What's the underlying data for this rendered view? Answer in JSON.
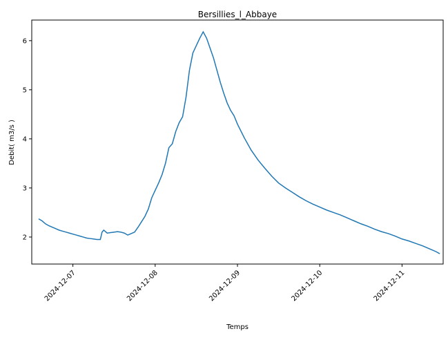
{
  "chart_data": {
    "type": "line",
    "title": "Bersillies_l_Abbaye",
    "xlabel": "Temps",
    "ylabel": "Debit( m3/s )",
    "x_type": "datetime",
    "xlim": [
      "2024-12-06 12:00",
      "2024-12-11 12:00"
    ],
    "ylim": [
      1.45,
      6.42
    ],
    "grid": false,
    "x_ticks": [
      "2024-12-07",
      "2024-12-08",
      "2024-12-09",
      "2024-12-10",
      "2024-12-11"
    ],
    "y_ticks": [
      2,
      3,
      4,
      5,
      6
    ],
    "series": [
      {
        "color": "#1f77b4",
        "points": [
          [
            "2024-12-06 14:00",
            2.37
          ],
          [
            "2024-12-06 15:00",
            2.33
          ],
          [
            "2024-12-06 16:00",
            2.27
          ],
          [
            "2024-12-06 17:00",
            2.23
          ],
          [
            "2024-12-06 18:00",
            2.2
          ],
          [
            "2024-12-06 19:00",
            2.17
          ],
          [
            "2024-12-06 20:00",
            2.14
          ],
          [
            "2024-12-06 21:00",
            2.12
          ],
          [
            "2024-12-06 22:00",
            2.1
          ],
          [
            "2024-12-06 23:00",
            2.08
          ],
          [
            "2024-12-07 00:00",
            2.06
          ],
          [
            "2024-12-07 01:00",
            2.04
          ],
          [
            "2024-12-07 02:00",
            2.02
          ],
          [
            "2024-12-07 03:00",
            2.0
          ],
          [
            "2024-12-07 04:00",
            1.98
          ],
          [
            "2024-12-07 05:00",
            1.97
          ],
          [
            "2024-12-07 06:00",
            1.96
          ],
          [
            "2024-12-07 07:00",
            1.95
          ],
          [
            "2024-12-07 08:00",
            1.95
          ],
          [
            "2024-12-07 08:30",
            2.1
          ],
          [
            "2024-12-07 09:00",
            2.14
          ],
          [
            "2024-12-07 10:00",
            2.08
          ],
          [
            "2024-12-07 11:00",
            2.09
          ],
          [
            "2024-12-07 12:00",
            2.1
          ],
          [
            "2024-12-07 13:00",
            2.11
          ],
          [
            "2024-12-07 14:00",
            2.1
          ],
          [
            "2024-12-07 15:00",
            2.08
          ],
          [
            "2024-12-07 16:00",
            2.04
          ],
          [
            "2024-12-07 17:00",
            2.07
          ],
          [
            "2024-12-07 18:00",
            2.1
          ],
          [
            "2024-12-07 19:00",
            2.2
          ],
          [
            "2024-12-07 20:00",
            2.31
          ],
          [
            "2024-12-07 21:00",
            2.42
          ],
          [
            "2024-12-07 22:00",
            2.57
          ],
          [
            "2024-12-07 23:00",
            2.8
          ],
          [
            "2024-12-08 00:00",
            2.95
          ],
          [
            "2024-12-08 01:00",
            3.1
          ],
          [
            "2024-12-08 02:00",
            3.27
          ],
          [
            "2024-12-08 03:00",
            3.5
          ],
          [
            "2024-12-08 04:00",
            3.82
          ],
          [
            "2024-12-08 05:00",
            3.9
          ],
          [
            "2024-12-08 06:00",
            4.15
          ],
          [
            "2024-12-08 07:00",
            4.33
          ],
          [
            "2024-12-08 08:00",
            4.45
          ],
          [
            "2024-12-08 09:00",
            4.85
          ],
          [
            "2024-12-08 10:00",
            5.4
          ],
          [
            "2024-12-08 11:00",
            5.75
          ],
          [
            "2024-12-08 12:00",
            5.9
          ],
          [
            "2024-12-08 13:00",
            6.05
          ],
          [
            "2024-12-08 14:00",
            6.18
          ],
          [
            "2024-12-08 15:00",
            6.05
          ],
          [
            "2024-12-08 16:00",
            5.85
          ],
          [
            "2024-12-08 17:00",
            5.65
          ],
          [
            "2024-12-08 18:00",
            5.4
          ],
          [
            "2024-12-08 19:00",
            5.15
          ],
          [
            "2024-12-08 20:00",
            4.93
          ],
          [
            "2024-12-08 21:00",
            4.73
          ],
          [
            "2024-12-08 22:00",
            4.58
          ],
          [
            "2024-12-08 23:00",
            4.47
          ],
          [
            "2024-12-09 00:00",
            4.3
          ],
          [
            "2024-12-09 02:00",
            4.02
          ],
          [
            "2024-12-09 04:00",
            3.77
          ],
          [
            "2024-12-09 06:00",
            3.57
          ],
          [
            "2024-12-09 08:00",
            3.4
          ],
          [
            "2024-12-09 10:00",
            3.24
          ],
          [
            "2024-12-09 12:00",
            3.1
          ],
          [
            "2024-12-09 14:00",
            3.0
          ],
          [
            "2024-12-09 16:00",
            2.91
          ],
          [
            "2024-12-09 18:00",
            2.82
          ],
          [
            "2024-12-09 20:00",
            2.74
          ],
          [
            "2024-12-09 22:00",
            2.67
          ],
          [
            "2024-12-10 00:00",
            2.61
          ],
          [
            "2024-12-10 02:00",
            2.55
          ],
          [
            "2024-12-10 04:00",
            2.5
          ],
          [
            "2024-12-10 06:00",
            2.45
          ],
          [
            "2024-12-10 08:00",
            2.39
          ],
          [
            "2024-12-10 10:00",
            2.33
          ],
          [
            "2024-12-10 12:00",
            2.27
          ],
          [
            "2024-12-10 14:00",
            2.22
          ],
          [
            "2024-12-10 16:00",
            2.16
          ],
          [
            "2024-12-10 18:00",
            2.11
          ],
          [
            "2024-12-10 20:00",
            2.07
          ],
          [
            "2024-12-10 22:00",
            2.02
          ],
          [
            "2024-12-11 00:00",
            1.96
          ],
          [
            "2024-12-11 02:00",
            1.92
          ],
          [
            "2024-12-11 04:00",
            1.87
          ],
          [
            "2024-12-11 06:00",
            1.82
          ],
          [
            "2024-12-11 08:00",
            1.76
          ],
          [
            "2024-12-11 10:00",
            1.7
          ],
          [
            "2024-12-11 11:00",
            1.66
          ]
        ]
      }
    ]
  }
}
